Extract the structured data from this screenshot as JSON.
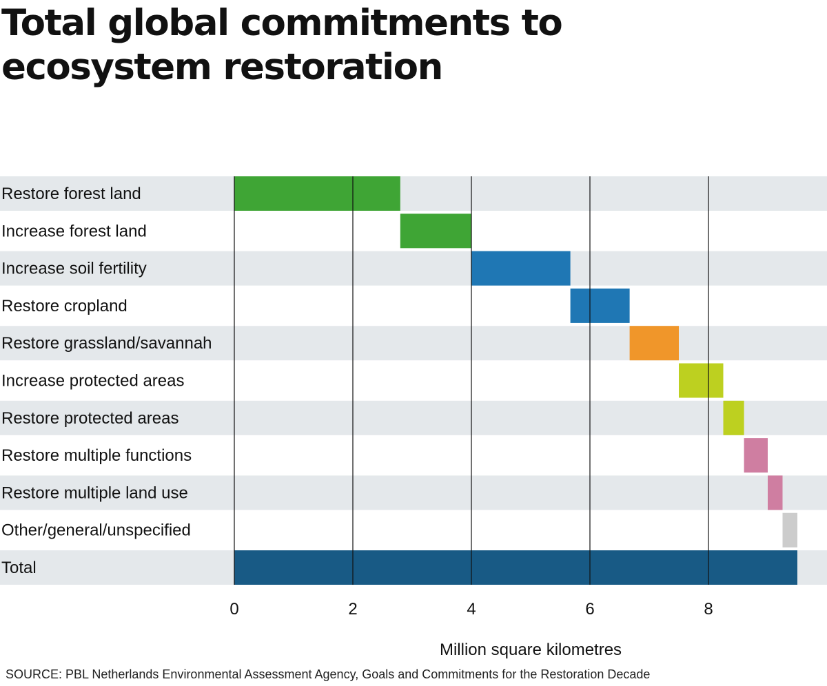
{
  "chart_data": {
    "type": "bar",
    "subtype": "waterfall",
    "title": "Total global commitments to ecosystem restoration",
    "xlabel": "Million square kilometres",
    "ylabel": "",
    "xlim": [
      0,
      10
    ],
    "xticks": [
      0,
      2,
      4,
      6,
      8
    ],
    "grid": true,
    "categories": [
      "Restore forest land",
      "Increase forest land",
      "Increase soil fertility",
      "Restore cropland",
      "Restore grassland/savannah",
      "Increase protected areas",
      "Restore protected areas",
      "Restore multiple functions",
      "Restore multiple land use",
      "Other/general/unspecified",
      "Total"
    ],
    "values": [
      2.8,
      1.2,
      1.67,
      1.0,
      0.83,
      0.75,
      0.35,
      0.4,
      0.25,
      0.25,
      9.5
    ],
    "colors": [
      "#3fa535",
      "#3fa535",
      "#1f77b4",
      "#1f77b4",
      "#f0962a",
      "#bdd020",
      "#bdd020",
      "#cf7ea1",
      "#cf7ea1",
      "#cccccc",
      "#185a85"
    ],
    "source": "SOURCE: PBL Netherlands Environmental Assessment Agency, Goals and Commitments for the Restoration Decade"
  }
}
